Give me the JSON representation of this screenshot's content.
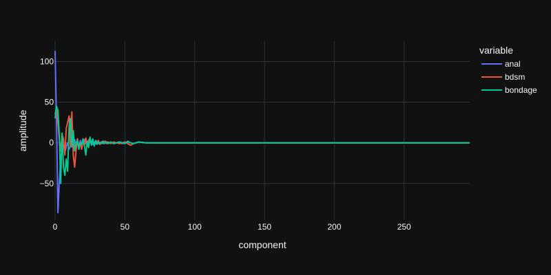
{
  "chart_data": {
    "type": "line",
    "xlabel": "component",
    "ylabel": "amplitude",
    "legend_title": "variable",
    "legend_position": "right",
    "xlim": [
      0,
      297
    ],
    "ylim": [
      -95,
      125
    ],
    "x_ticks": [
      0,
      50,
      100,
      150,
      200,
      250
    ],
    "y_ticks": [
      -50,
      0,
      50,
      100
    ],
    "grid": true,
    "colors": {
      "background": "#111111",
      "grid": "#283442",
      "text": "#f2f5fa"
    },
    "series": [
      {
        "name": "anal",
        "color": "#636efa",
        "x": [
          0,
          1,
          2,
          3,
          4,
          5,
          6,
          7,
          8,
          9,
          10,
          11,
          12,
          13,
          14,
          15,
          16,
          17,
          18,
          19,
          20,
          21,
          22,
          23,
          24,
          25,
          26,
          27,
          28,
          29,
          30,
          31,
          32,
          33,
          34,
          35,
          36,
          37,
          38,
          39,
          40,
          42,
          44,
          46,
          48,
          50,
          52,
          54,
          56,
          58,
          60,
          65,
          70,
          75,
          80,
          90,
          100,
          110,
          120,
          130,
          150,
          170,
          200,
          230,
          260,
          297
        ],
        "y": [
          113,
          30,
          -86,
          -48,
          -20,
          -10,
          -3,
          -12,
          -5,
          0,
          -8,
          -4,
          -2,
          -6,
          4,
          -3,
          2,
          -5,
          3,
          -2,
          1,
          4,
          -1,
          2,
          -1,
          1,
          2,
          -2,
          1,
          -1,
          2,
          -1,
          0,
          1,
          -1,
          2,
          0,
          -1,
          1,
          0,
          1,
          -1,
          0,
          1,
          -1,
          0,
          1,
          0,
          -1,
          0,
          1,
          0,
          0,
          0,
          0,
          0,
          0,
          0,
          0,
          0,
          0,
          0,
          0,
          0,
          0,
          0
        ]
      },
      {
        "name": "bdsm",
        "color": "#ef553b",
        "x": [
          0,
          1,
          2,
          3,
          4,
          5,
          6,
          7,
          8,
          9,
          10,
          11,
          12,
          13,
          14,
          15,
          16,
          17,
          18,
          19,
          20,
          21,
          22,
          23,
          24,
          25,
          26,
          27,
          28,
          29,
          30,
          31,
          32,
          33,
          34,
          35,
          36,
          37,
          38,
          39,
          40,
          42,
          44,
          46,
          48,
          50,
          52,
          54,
          56,
          58,
          60,
          65,
          70,
          75,
          80,
          90,
          100,
          110,
          120,
          130,
          150,
          170,
          200,
          230,
          260,
          297
        ],
        "y": [
          35,
          44,
          25,
          5,
          -10,
          10,
          5,
          -15,
          18,
          25,
          33,
          -5,
          38,
          -15,
          -30,
          -10,
          5,
          -5,
          0,
          -8,
          2,
          -3,
          6,
          -4,
          3,
          6,
          -2,
          4,
          -3,
          2,
          -1,
          3,
          -2,
          1,
          0,
          -1,
          2,
          -1,
          1,
          0,
          -1,
          1,
          0,
          -1,
          0,
          1,
          -1,
          -3,
          -1,
          0,
          1,
          0,
          0,
          0,
          0,
          0,
          0,
          0,
          0,
          0,
          0,
          0,
          0,
          0,
          0,
          0
        ]
      },
      {
        "name": "bondage",
        "color": "#00cc96",
        "x": [
          0,
          1,
          2,
          3,
          4,
          5,
          6,
          7,
          8,
          9,
          10,
          11,
          12,
          13,
          14,
          15,
          16,
          17,
          18,
          19,
          20,
          21,
          22,
          23,
          24,
          25,
          26,
          27,
          28,
          29,
          30,
          31,
          32,
          33,
          34,
          35,
          36,
          37,
          38,
          39,
          40,
          42,
          44,
          46,
          48,
          50,
          52,
          54,
          56,
          58,
          60,
          65,
          70,
          75,
          80,
          90,
          100,
          110,
          120,
          130,
          150,
          170,
          200,
          230,
          260,
          297
        ],
        "y": [
          30,
          45,
          40,
          10,
          -50,
          12,
          -30,
          -40,
          -20,
          -35,
          20,
          30,
          -5,
          15,
          -10,
          0,
          3,
          -8,
          0,
          -2,
          5,
          -4,
          -15,
          2,
          -6,
          7,
          -3,
          5,
          -4,
          3,
          -2,
          1,
          0,
          -1,
          2,
          -1,
          0,
          1,
          -1,
          0,
          1,
          -1,
          0,
          1,
          0,
          -1,
          2,
          0,
          -1,
          0,
          1,
          0,
          0,
          0,
          0,
          0,
          0,
          0,
          0,
          0,
          0,
          0,
          0,
          0,
          0,
          0
        ]
      }
    ]
  }
}
